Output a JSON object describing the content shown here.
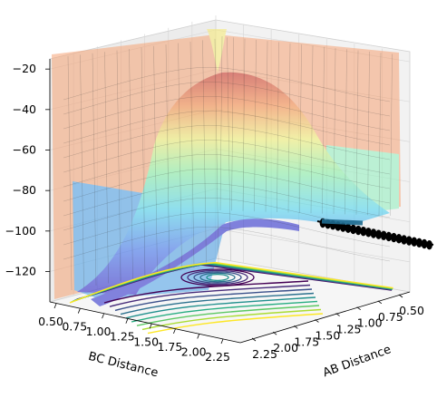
{
  "chart_data": {
    "type": "surface",
    "z_ticks": [
      "−20",
      "−40",
      "−60",
      "−80",
      "−100",
      "−120"
    ],
    "z_values": [
      -20,
      -40,
      -60,
      -80,
      -100,
      -120
    ],
    "zlim": [
      -135,
      -15
    ],
    "bc_ticks": [
      "0.50",
      "0.75",
      "1.00",
      "1.25",
      "1.50",
      "1.75",
      "2.00",
      "2.25"
    ],
    "bc_values": [
      0.5,
      0.75,
      1.0,
      1.25,
      1.5,
      1.75,
      2.0,
      2.25
    ],
    "ab_ticks": [
      "2.25",
      "2.00",
      "1.75",
      "1.50",
      "1.25",
      "1.00",
      "0.75",
      "0.50"
    ],
    "ab_values": [
      2.25,
      2.0,
      1.75,
      1.5,
      1.25,
      1.0,
      0.75,
      0.5
    ],
    "xlabel": "BC Distance",
    "ylabel": "AB Distance",
    "grid": true,
    "colormap_surface": "jet",
    "colormap_contour": "viridis",
    "trajectory_color": "#000000"
  }
}
